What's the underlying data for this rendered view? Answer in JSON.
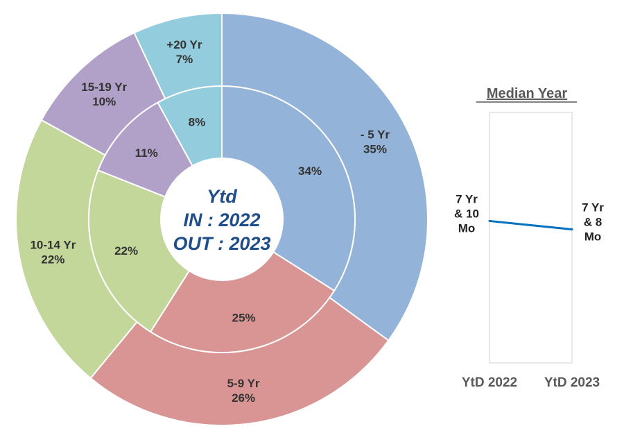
{
  "chart_data": [
    {
      "type": "pie",
      "subtype": "double-donut",
      "center_label": [
        "Ytd",
        "IN : 2022",
        "OUT : 2023"
      ],
      "colors": [
        "#94b3d9",
        "#d99593",
        "#c4d79b",
        "#b1a0c7",
        "#93cddd"
      ],
      "outer_ring": {
        "year": "2023",
        "slices": [
          {
            "label": "- 5 Yr",
            "value": 35,
            "value_label": "35%"
          },
          {
            "label": "5-9 Yr",
            "value": 26,
            "value_label": "26%"
          },
          {
            "label": "10-14 Yr",
            "value": 22,
            "value_label": "22%"
          },
          {
            "label": "15-19 Yr",
            "value": 10,
            "value_label": "10%"
          },
          {
            "label": "+20 Yr",
            "value": 7,
            "value_label": "7%"
          }
        ]
      },
      "inner_ring": {
        "year": "2022",
        "slices": [
          {
            "value": 34,
            "value_label": "34%"
          },
          {
            "value": 25,
            "value_label": "25%"
          },
          {
            "value": 22,
            "value_label": "22%"
          },
          {
            "value": 11,
            "value_label": "11%"
          },
          {
            "value": 8,
            "value_label": "8%"
          }
        ]
      }
    },
    {
      "type": "line",
      "title": "Median Year",
      "categories": [
        "YtD 2022",
        "YtD 2023"
      ],
      "series": [
        {
          "values_months": [
            94,
            92
          ],
          "point_labels": [
            [
              "7 Yr",
              "& 10",
              "Mo"
            ],
            [
              "7 Yr",
              "& 8",
              "Mo"
            ]
          ],
          "color": "#0070c0"
        }
      ],
      "ylim_months": [
        60,
        120
      ],
      "grid": false
    }
  ]
}
